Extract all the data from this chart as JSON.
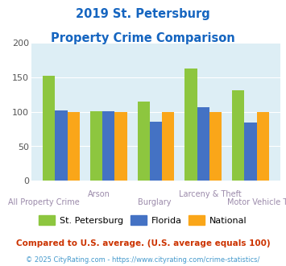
{
  "title_line1": "2019 St. Petersburg",
  "title_line2": "Property Crime Comparison",
  "categories": [
    "All Property Crime",
    "Arson",
    "Burglary",
    "Larceny & Theft",
    "Motor Vehicle Theft"
  ],
  "st_pete": [
    152,
    101,
    115,
    163,
    131
  ],
  "florida": [
    102,
    101,
    86,
    107,
    84
  ],
  "national": [
    100,
    100,
    100,
    100,
    100
  ],
  "color_stpete": "#8dc63f",
  "color_florida": "#4472c4",
  "color_national": "#faa619",
  "ylim": [
    0,
    200
  ],
  "yticks": [
    0,
    50,
    100,
    150,
    200
  ],
  "bg_color": "#ddeef5",
  "title_color": "#1565c0",
  "xlabel_color": "#9b8aaa",
  "legend_label_stpete": "St. Petersburg",
  "legend_label_florida": "Florida",
  "legend_label_national": "National",
  "footnote1": "Compared to U.S. average. (U.S. average equals 100)",
  "footnote2": "© 2025 CityRating.com - https://www.cityrating.com/crime-statistics/",
  "footnote1_color": "#cc3300",
  "footnote2_color": "#4499cc"
}
